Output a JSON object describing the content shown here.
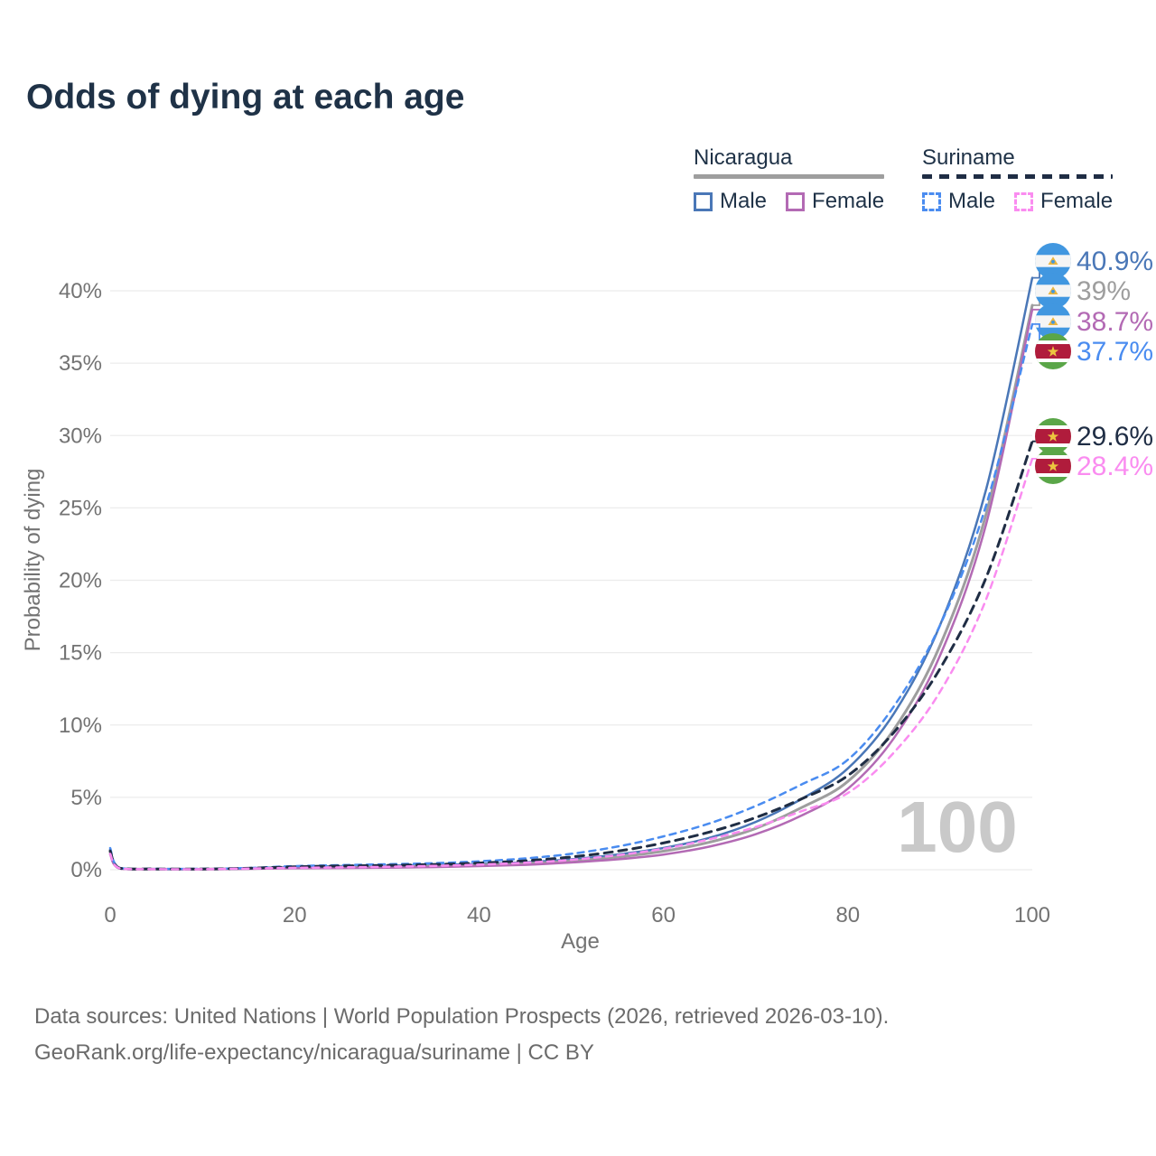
{
  "title": "Odds of dying at each age",
  "legend": {
    "groups": [
      {
        "country": "Nicaragua",
        "line_style": "solid",
        "underline_series": 1,
        "items": [
          {
            "label": "Male",
            "series": 0
          },
          {
            "label": "Female",
            "series": 2
          }
        ]
      },
      {
        "country": "Suriname",
        "line_style": "dashed",
        "underline_series": 4,
        "items": [
          {
            "label": "Male",
            "series": 3
          },
          {
            "label": "Female",
            "series": 5
          }
        ]
      }
    ]
  },
  "watermark": "100",
  "footer": {
    "line1": "Data sources: United Nations | World Population Prospects (2026, retrieved 2026-03-10).",
    "line2": "GeoRank.org/life-expectancy/nicaragua/suriname | CC BY"
  },
  "colors": {
    "title_text": "#1f3247",
    "legend_text": "#1f3247",
    "axis_text": "#737373",
    "gridline": "#ececec",
    "watermark": "#c9c9c9",
    "nicaragua_male": "#4a77b7",
    "nicaragua_both": "#9e9e9e",
    "nicaragua_female": "#b36ab4",
    "suriname_male": "#4a8cf0",
    "suriname_both": "#1f2d44",
    "suriname_female": "#fa8cf0"
  },
  "flags": {
    "nicaragua": {
      "blue": "#4197e0",
      "white": "#f5f5f5",
      "gold": "#e9b53f"
    },
    "suriname": {
      "green": "#5aa648",
      "white": "#ffffff",
      "red": "#b01c3c",
      "gold": "#ecc53f"
    }
  },
  "chart_data": {
    "type": "line",
    "title": "Odds of dying at each age",
    "xlabel": "Age",
    "ylabel": "Probability of dying",
    "xlim": [
      0,
      100
    ],
    "ylim": [
      0,
      43
    ],
    "grid": "horizontal",
    "legend_position": "top-right",
    "xticks": [
      0,
      20,
      40,
      60,
      80,
      100
    ],
    "ytick_labels": [
      "0%",
      "5%",
      "10%",
      "15%",
      "20%",
      "25%",
      "30%",
      "35%",
      "40%"
    ],
    "ytick_values": [
      0,
      5,
      10,
      15,
      20,
      25,
      30,
      35,
      40
    ],
    "x": [
      0,
      1,
      5,
      10,
      15,
      20,
      25,
      30,
      35,
      40,
      45,
      50,
      55,
      60,
      65,
      70,
      75,
      80,
      85,
      90,
      95,
      100
    ],
    "series": [
      {
        "name": "Nicaragua Male",
        "country": "Nicaragua",
        "sex": "Male",
        "color": "#4a77b7",
        "dash": "solid",
        "width": 2.5,
        "flag": "nicaragua",
        "end_label": "40.9%",
        "end_value": 40.9,
        "values": [
          1.4,
          0.12,
          0.05,
          0.05,
          0.1,
          0.2,
          0.25,
          0.28,
          0.32,
          0.4,
          0.52,
          0.72,
          1.05,
          1.5,
          2.2,
          3.3,
          4.9,
          7.0,
          10.8,
          16.9,
          26.3,
          40.9
        ]
      },
      {
        "name": "Nicaragua Both sexes",
        "country": "Nicaragua",
        "sex": "Both",
        "color": "#9e9e9e",
        "dash": "solid",
        "width": 3,
        "flag": "nicaragua",
        "end_label": "39%",
        "end_value": 39,
        "values": [
          1.2,
          0.1,
          0.04,
          0.04,
          0.08,
          0.15,
          0.18,
          0.21,
          0.25,
          0.32,
          0.42,
          0.6,
          0.88,
          1.28,
          1.9,
          2.85,
          4.3,
          6.1,
          9.7,
          15.5,
          24.6,
          39.0
        ]
      },
      {
        "name": "Nicaragua Female",
        "country": "Nicaragua",
        "sex": "Female",
        "color": "#b36ab4",
        "dash": "solid",
        "width": 2.5,
        "flag": "nicaragua",
        "end_label": "38.7%",
        "end_value": 38.7,
        "values": [
          1.05,
          0.09,
          0.04,
          0.03,
          0.06,
          0.1,
          0.12,
          0.14,
          0.18,
          0.25,
          0.34,
          0.5,
          0.72,
          1.05,
          1.6,
          2.45,
          3.75,
          5.6,
          9.1,
          14.8,
          23.9,
          38.7
        ]
      },
      {
        "name": "Suriname Male",
        "country": "Suriname",
        "sex": "Male",
        "color": "#4a8cf0",
        "dash": "dashed",
        "width": 2.5,
        "flag": "suriname",
        "end_label": "37.7%",
        "end_value": 37.7,
        "values": [
          1.5,
          0.13,
          0.06,
          0.06,
          0.12,
          0.25,
          0.32,
          0.38,
          0.45,
          0.58,
          0.78,
          1.1,
          1.6,
          2.3,
          3.2,
          4.4,
          5.9,
          7.6,
          11.3,
          16.9,
          25.2,
          37.7
        ]
      },
      {
        "name": "Suriname Both sexes",
        "country": "Suriname",
        "sex": "Both",
        "color": "#1f2d44",
        "dash": "dashed",
        "width": 3,
        "flag": "suriname",
        "end_label": "29.6%",
        "end_value": 29.6,
        "values": [
          1.3,
          0.11,
          0.05,
          0.05,
          0.1,
          0.2,
          0.26,
          0.3,
          0.36,
          0.46,
          0.62,
          0.88,
          1.28,
          1.85,
          2.6,
          3.6,
          4.9,
          6.5,
          9.5,
          13.9,
          20.2,
          29.6
        ]
      },
      {
        "name": "Suriname Female",
        "country": "Suriname",
        "sex": "Female",
        "color": "#fa8cf0",
        "dash": "dashed",
        "width": 2.5,
        "flag": "suriname",
        "end_label": "28.4%",
        "end_value": 28.4,
        "values": [
          1.1,
          0.1,
          0.04,
          0.04,
          0.08,
          0.13,
          0.16,
          0.2,
          0.26,
          0.35,
          0.48,
          0.68,
          1.0,
          1.45,
          2.1,
          2.95,
          4.05,
          5.3,
          8.1,
          12.3,
          18.7,
          28.4
        ]
      }
    ]
  }
}
